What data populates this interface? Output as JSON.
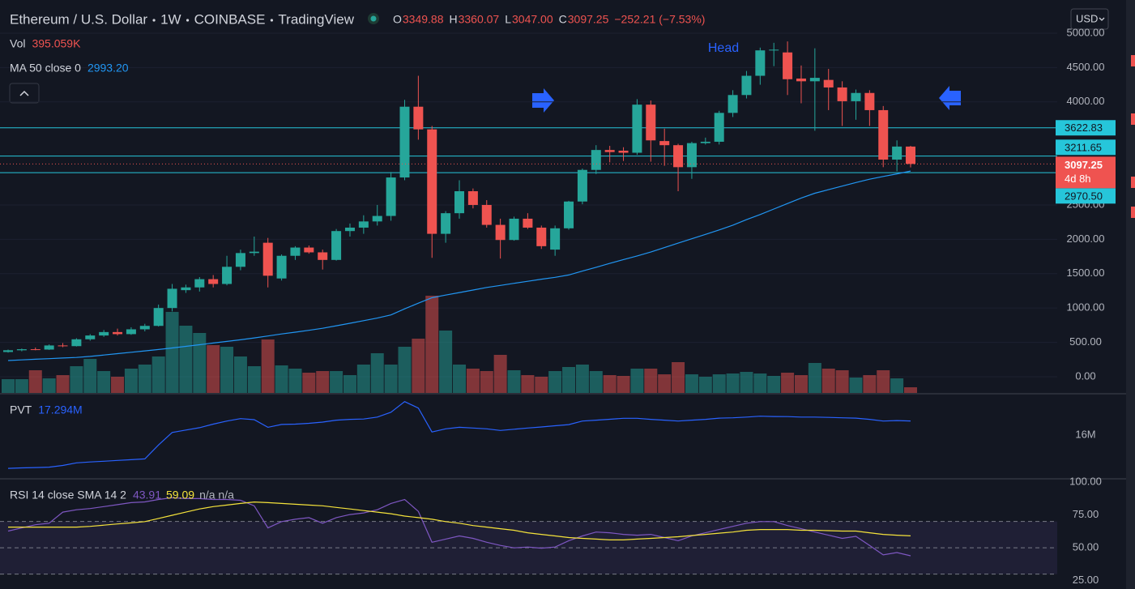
{
  "header": {
    "title": "Ethereum / U.S. Dollar",
    "interval": "1W",
    "exchange": "COINBASE",
    "source": "TradingView",
    "ohlc": [
      {
        "label": "O",
        "value": "3349.88"
      },
      {
        "label": "H",
        "value": "3360.07"
      },
      {
        "label": "L",
        "value": "3047.00"
      },
      {
        "label": "C",
        "value": "3097.25"
      }
    ],
    "change": "−252.21 (−7.53%)",
    "currency": "USD"
  },
  "chart_data": [
    {
      "type": "candlestick",
      "up_color": "#26a69a",
      "down_color": "#ef5350",
      "grid": true,
      "ylim": [
        -236,
        5483
      ],
      "yticks": [
        {
          "value": 0,
          "label": "0.00"
        },
        {
          "value": 500,
          "label": "500.00"
        },
        {
          "value": 1000,
          "label": "1000.00"
        },
        {
          "value": 1500,
          "label": "1500.00"
        },
        {
          "value": 2000,
          "label": "2000.00"
        },
        {
          "value": 2500,
          "label": "2500.00"
        },
        {
          "value": 4000,
          "label": "4000.00"
        },
        {
          "value": 4500,
          "label": "4500.00"
        },
        {
          "value": 5000,
          "label": "5000.00"
        }
      ],
      "open": [
        360,
        385,
        400,
        395,
        455,
        445,
        545,
        600,
        650,
        620,
        690,
        740,
        1000,
        1260,
        1300,
        1420,
        1350,
        1600,
        1800,
        1950,
        1430,
        1760,
        1880,
        1810,
        1700,
        2120,
        2170,
        2260,
        2340,
        2900,
        3930,
        3600,
        2080,
        2380,
        2700,
        2500,
        2210,
        1990,
        2300,
        2170,
        1850,
        2160,
        2550,
        3010,
        3300,
        3290,
        3260,
        3960,
        3430,
        3370,
        3050,
        3400,
        3420,
        3840,
        4100,
        4380,
        4750,
        4720,
        4340,
        4300,
        4320,
        4210,
        4010,
        4130,
        3880,
        3160,
        3349.88
      ],
      "high": [
        395,
        410,
        425,
        470,
        490,
        560,
        620,
        680,
        700,
        720,
        770,
        1050,
        1350,
        1340,
        1450,
        1480,
        1760,
        1850,
        2040,
        2020,
        1780,
        1900,
        1910,
        1850,
        2150,
        2230,
        2350,
        2500,
        2980,
        4030,
        4380,
        3650,
        2410,
        2860,
        2740,
        2570,
        2300,
        2330,
        2380,
        2200,
        2200,
        2560,
        3030,
        3370,
        3360,
        3340,
        4040,
        4020,
        3610,
        3390,
        3420,
        3480,
        3870,
        4170,
        4450,
        4790,
        4860,
        4880,
        4530,
        4780,
        4480,
        4300,
        4180,
        4170,
        3940,
        3440,
        3360.07
      ],
      "low": [
        350,
        370,
        385,
        390,
        430,
        440,
        525,
        580,
        600,
        610,
        660,
        730,
        950,
        1220,
        1240,
        1300,
        1330,
        1550,
        1760,
        1300,
        1400,
        1700,
        1790,
        1560,
        1690,
        2040,
        2080,
        2200,
        2270,
        2860,
        3450,
        1730,
        1950,
        2300,
        2450,
        2170,
        1720,
        1980,
        2150,
        1860,
        1760,
        2140,
        2510,
        2950,
        3120,
        3140,
        3230,
        3130,
        3070,
        2700,
        2880,
        3380,
        3380,
        3780,
        4050,
        4250,
        4520,
        4100,
        3980,
        3580,
        3880,
        3650,
        3740,
        3650,
        3050,
        2990,
        3047
      ],
      "close": [
        385,
        400,
        395,
        455,
        445,
        545,
        600,
        650,
        620,
        690,
        740,
        1000,
        1280,
        1300,
        1420,
        1350,
        1600,
        1800,
        1820,
        1470,
        1760,
        1880,
        1810,
        1700,
        2120,
        2170,
        2260,
        2340,
        2900,
        3930,
        3600,
        2080,
        2380,
        2700,
        2500,
        2210,
        1990,
        2300,
        2170,
        1900,
        2160,
        2550,
        3010,
        3300,
        3270,
        3260,
        3960,
        3440,
        3370,
        3050,
        3400,
        3420,
        3840,
        4100,
        4380,
        4750,
        4760,
        4330,
        4300,
        4350,
        4210,
        4010,
        4130,
        3880,
        3160,
        3350,
        3097.25
      ],
      "volume": {
        "name": "Vol",
        "legend_value": "395.059K",
        "up_color": "rgba(38,166,154,0.5)",
        "down_color": "rgba(239,83,80,0.5)",
        "values": [
          958800,
          958800,
          1579200,
          1015200,
          1240800,
          1861200,
          2368800,
          1522800,
          1128000,
          1692000,
          1974000,
          2538000,
          5640000,
          4681200,
          4173600,
          3327600,
          3214800,
          2538000,
          1861200,
          3722400,
          1917600,
          1692000,
          1410000,
          1522800,
          1522800,
          1240800,
          1974000,
          2763600,
          1974000,
          3214800,
          3778800,
          6768000,
          4342800,
          1974000,
          1692000,
          1522800,
          2650800,
          1579200,
          1240800,
          1128000,
          1522800,
          1804800,
          1974000,
          1522800,
          1240800,
          1184400,
          1692000,
          1692000,
          1297200,
          2143200,
          1297200,
          1128000,
          1297200,
          1353600,
          1466400,
          1353600,
          1184400,
          1410000,
          1240800,
          2086800,
          1692000,
          1579200,
          1071600,
          1240800,
          1579200,
          1015200,
          395059
        ]
      },
      "ma": {
        "name": "MA 50 close 0",
        "legend_value": "2993.20",
        "color": "#2196f3",
        "values": [
          236,
          245,
          254,
          263,
          272,
          280,
          296,
          316,
          336,
          356,
          376,
          396,
          419,
          442,
          466,
          490,
          514,
          538,
          565,
          593,
          622,
          648,
          676,
          705,
          741,
          778,
          816,
          853,
          900,
          988,
          1071,
          1150,
          1188,
          1225,
          1262,
          1299,
          1329,
          1359,
          1389,
          1419,
          1447,
          1481,
          1537,
          1593,
          1649,
          1705,
          1758,
          1815,
          1880,
          1944,
          2008,
          2072,
          2137,
          2206,
          2286,
          2361,
          2441,
          2521,
          2601,
          2671,
          2723,
          2775,
          2826,
          2875,
          2915,
          2953,
          2993.2
        ]
      },
      "hline_color": "#26c6da",
      "hlines": [
        {
          "value": 3622.83,
          "label": "3622.83"
        },
        {
          "value": 3211.65,
          "label": "3211.65"
        },
        {
          "value": 2970.5,
          "label": "2970.50"
        }
      ],
      "countdown": "4d 8h",
      "annotation": "Head"
    },
    {
      "type": "line",
      "ylim": [
        12100000,
        19700000
      ],
      "yticks": [
        {
          "value": 16000000,
          "label": "16M"
        }
      ],
      "series": [
        {
          "name": "PVT",
          "legend_value": "17.294M",
          "color": "#2962ff",
          "values": [
            12980000,
            13020000,
            13050000,
            13090000,
            13240000,
            13480000,
            13560000,
            13630000,
            13700000,
            13770000,
            13840000,
            15110000,
            16250000,
            16470000,
            16680000,
            17010000,
            17290000,
            17510000,
            17410000,
            16720000,
            16980000,
            17010000,
            17080000,
            17190000,
            17370000,
            17440000,
            17470000,
            17650000,
            18090000,
            19060000,
            18470000,
            16290000,
            16580000,
            16720000,
            16650000,
            16580000,
            16430000,
            16540000,
            16650000,
            16750000,
            16860000,
            16960000,
            17290000,
            17370000,
            17450000,
            17540000,
            17540000,
            17440000,
            17370000,
            17290000,
            17370000,
            17440000,
            17550000,
            17580000,
            17650000,
            17730000,
            17700000,
            17690000,
            17650000,
            17650000,
            17620000,
            17580000,
            17550000,
            17440000,
            17290000,
            17330000,
            17294000
          ]
        }
      ]
    },
    {
      "type": "line",
      "title": "RSI 14 close SMA 14 2",
      "note": "n/a n/a",
      "ylim": [
        18.7,
        101.8
      ],
      "yticks": [
        {
          "value": 100,
          "label": "100.00"
        },
        {
          "value": 75,
          "label": "75.00"
        },
        {
          "value": 50,
          "label": "50.00"
        },
        {
          "value": 25,
          "label": "25.00"
        }
      ],
      "levels": [
        70,
        50,
        30
      ],
      "band_color": "rgba(126,87,194,0.12)",
      "series": [
        {
          "color": "#7e57c2",
          "values": [
            62.7,
            65.1,
            67.5,
            68.7,
            77.1,
            78.9,
            79.8,
            81.3,
            82.8,
            84.3,
            84.9,
            86.7,
            88,
            87.4,
            87.4,
            86.7,
            86.7,
            86.1,
            81.9,
            65.1,
            69.9,
            71.7,
            72.9,
            68.7,
            72.9,
            75.3,
            76.5,
            78.9,
            83.7,
            86.7,
            77.7,
            54.2,
            56.6,
            59,
            57.2,
            54.2,
            51.8,
            50,
            50.6,
            49.7,
            50.6,
            55.4,
            59,
            62,
            61.4,
            60.2,
            59.6,
            60.2,
            57.8,
            55.4,
            59,
            61.4,
            63.9,
            66.3,
            68.7,
            69.9,
            69.9,
            66.9,
            64.5,
            62,
            59.6,
            57.2,
            58.7,
            51.8,
            44.6,
            46.4,
            43.91
          ]
        },
        {
          "color": "#f5e33b",
          "values": [
            65.7,
            65.7,
            65.7,
            65.7,
            65.7,
            65.7,
            66.3,
            67.2,
            68.1,
            68.9,
            69.9,
            72.3,
            74.7,
            77.1,
            79.5,
            81.3,
            82.5,
            83.7,
            84.8,
            84.3,
            83.7,
            83.1,
            82.5,
            81.9,
            80.7,
            79.5,
            78.3,
            77.1,
            75.9,
            74.1,
            72.9,
            71.7,
            69.9,
            68.7,
            66.9,
            65.7,
            64.5,
            63.3,
            61.4,
            60.2,
            59,
            57.8,
            57.2,
            56.6,
            56,
            56,
            56.6,
            57.2,
            57.8,
            58.4,
            59.3,
            60.2,
            61.1,
            62,
            63.3,
            63.9,
            63.9,
            63.9,
            63.3,
            63.3,
            63,
            62.7,
            62.7,
            61.4,
            60.2,
            59.6,
            59.09
          ]
        }
      ]
    }
  ]
}
